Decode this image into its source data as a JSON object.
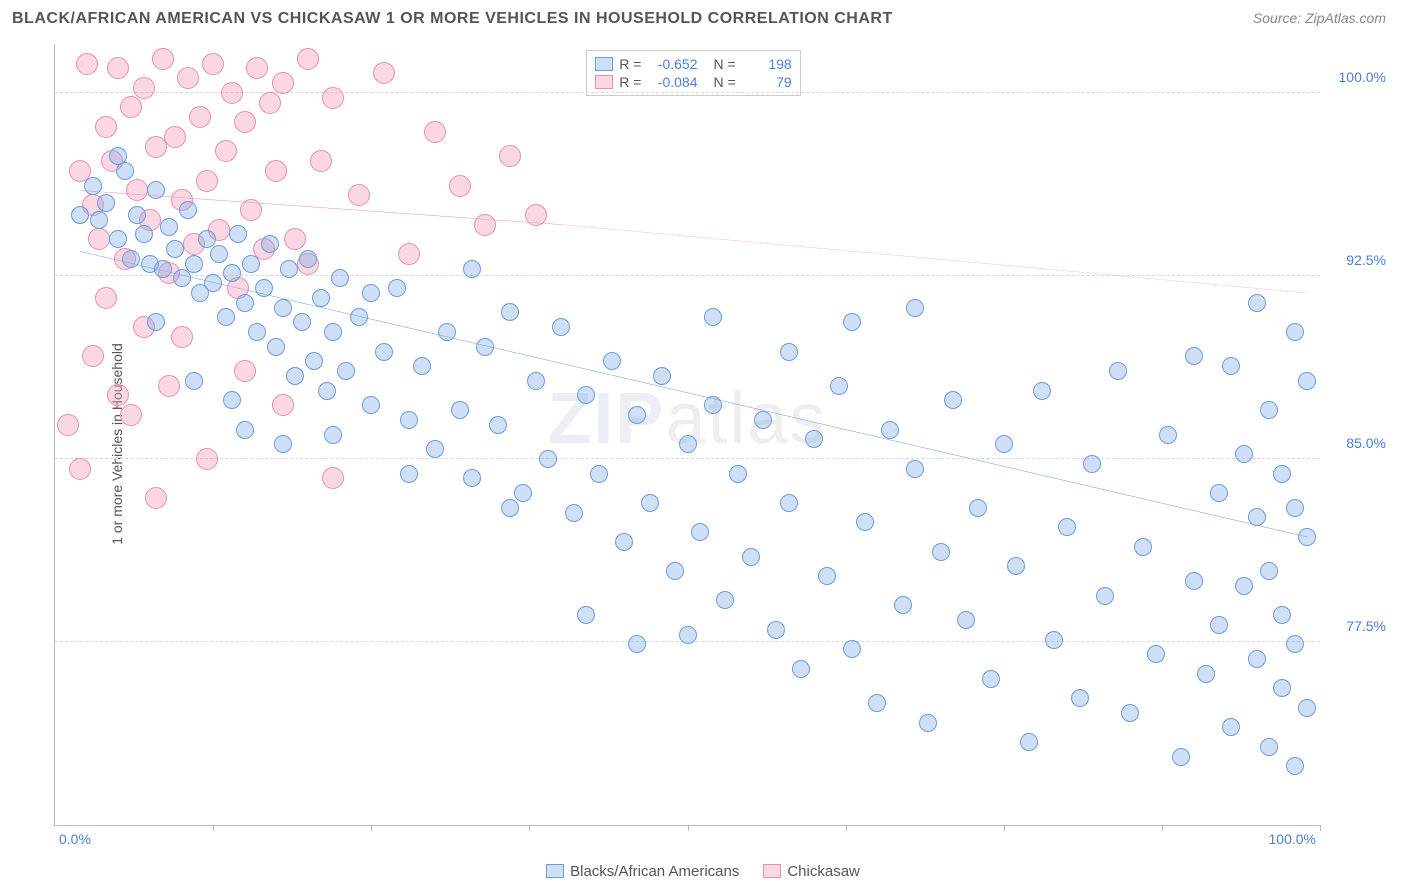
{
  "header": {
    "title": "BLACK/AFRICAN AMERICAN VS CHICKASAW 1 OR MORE VEHICLES IN HOUSEHOLD CORRELATION CHART",
    "source": "Source: ZipAtlas.com"
  },
  "chart": {
    "type": "scatter",
    "ylabel": "1 or more Vehicles in Household",
    "xmin": 0,
    "xmax": 100,
    "ymin": 70,
    "ymax": 102,
    "x_axis_labels": {
      "left": "0.0%",
      "right": "100.0%"
    },
    "y_ticks": [
      {
        "v": 100.0,
        "label": "100.0%"
      },
      {
        "v": 92.5,
        "label": "92.5%"
      },
      {
        "v": 85.0,
        "label": "85.0%"
      },
      {
        "v": 77.5,
        "label": "77.5%"
      }
    ],
    "x_tick_positions": [
      12.5,
      25,
      37.5,
      50,
      62.5,
      75,
      87.5,
      100
    ],
    "grid_color": "#d8d8d8",
    "background_color": "#ffffff",
    "watermark": {
      "bold": "ZIP",
      "thin": "atlas"
    },
    "series": {
      "a": {
        "label": "Blacks/African Americans",
        "fill": "rgba(126,171,232,0.38)",
        "stroke": "#6d9de0",
        "trend_color": "#2e6fd0",
        "trend": {
          "x1": 2,
          "y1": 93.5,
          "x2_solid": 99,
          "y2_solid": 81.8,
          "dashed": false
        },
        "marker_r": 9,
        "R": "-0.652",
        "N": "198",
        "points": [
          [
            2,
            95
          ],
          [
            3,
            96.2
          ],
          [
            3.5,
            94.8
          ],
          [
            4,
            95.5
          ],
          [
            5,
            94
          ],
          [
            5.5,
            96.8
          ],
          [
            6,
            93.2
          ],
          [
            6.5,
            95
          ],
          [
            7,
            94.2
          ],
          [
            7.5,
            93
          ],
          [
            8,
            96
          ],
          [
            8.5,
            92.8
          ],
          [
            9,
            94.5
          ],
          [
            9.5,
            93.6
          ],
          [
            10,
            92.4
          ],
          [
            10.5,
            95.2
          ],
          [
            11,
            93
          ],
          [
            11.5,
            91.8
          ],
          [
            12,
            94
          ],
          [
            12.5,
            92.2
          ],
          [
            13,
            93.4
          ],
          [
            13.5,
            90.8
          ],
          [
            14,
            92.6
          ],
          [
            14.5,
            94.2
          ],
          [
            15,
            91.4
          ],
          [
            15.5,
            93
          ],
          [
            16,
            90.2
          ],
          [
            16.5,
            92
          ],
          [
            17,
            93.8
          ],
          [
            17.5,
            89.6
          ],
          [
            18,
            91.2
          ],
          [
            18.5,
            92.8
          ],
          [
            19,
            88.4
          ],
          [
            19.5,
            90.6
          ],
          [
            20,
            93.2
          ],
          [
            20.5,
            89
          ],
          [
            21,
            91.6
          ],
          [
            21.5,
            87.8
          ],
          [
            22,
            90.2
          ],
          [
            22.5,
            92.4
          ],
          [
            23,
            88.6
          ],
          [
            24,
            90.8
          ],
          [
            25,
            87.2
          ],
          [
            26,
            89.4
          ],
          [
            27,
            92
          ],
          [
            28,
            86.6
          ],
          [
            29,
            88.8
          ],
          [
            30,
            85.4
          ],
          [
            31,
            90.2
          ],
          [
            32,
            87
          ],
          [
            33,
            84.2
          ],
          [
            34,
            89.6
          ],
          [
            35,
            86.4
          ],
          [
            36,
            91
          ],
          [
            37,
            83.6
          ],
          [
            38,
            88.2
          ],
          [
            39,
            85
          ],
          [
            40,
            90.4
          ],
          [
            41,
            82.8
          ],
          [
            42,
            87.6
          ],
          [
            43,
            84.4
          ],
          [
            44,
            89
          ],
          [
            45,
            81.6
          ],
          [
            46,
            86.8
          ],
          [
            47,
            83.2
          ],
          [
            48,
            88.4
          ],
          [
            49,
            80.4
          ],
          [
            50,
            85.6
          ],
          [
            50,
            77.8
          ],
          [
            51,
            82
          ],
          [
            52,
            87.2
          ],
          [
            53,
            79.2
          ],
          [
            54,
            84.4
          ],
          [
            55,
            81
          ],
          [
            56,
            86.6
          ],
          [
            57,
            78
          ],
          [
            58,
            83.2
          ],
          [
            59,
            76.4
          ],
          [
            60,
            85.8
          ],
          [
            61,
            80.2
          ],
          [
            62,
            88
          ],
          [
            63,
            77.2
          ],
          [
            64,
            82.4
          ],
          [
            65,
            75
          ],
          [
            66,
            86.2
          ],
          [
            67,
            79
          ],
          [
            68,
            84.6
          ],
          [
            69,
            74.2
          ],
          [
            70,
            81.2
          ],
          [
            71,
            87.4
          ],
          [
            72,
            78.4
          ],
          [
            73,
            83
          ],
          [
            74,
            76
          ],
          [
            75,
            85.6
          ],
          [
            76,
            80.6
          ],
          [
            77,
            73.4
          ],
          [
            78,
            87.8
          ],
          [
            79,
            77.6
          ],
          [
            80,
            82.2
          ],
          [
            81,
            75.2
          ],
          [
            82,
            84.8
          ],
          [
            83,
            79.4
          ],
          [
            84,
            88.6
          ],
          [
            85,
            74.6
          ],
          [
            86,
            81.4
          ],
          [
            87,
            77
          ],
          [
            88,
            86
          ],
          [
            89,
            72.8
          ],
          [
            90,
            80
          ],
          [
            90,
            89.2
          ],
          [
            91,
            76.2
          ],
          [
            92,
            83.6
          ],
          [
            92,
            78.2
          ],
          [
            93,
            88.8
          ],
          [
            93,
            74
          ],
          [
            94,
            85.2
          ],
          [
            94,
            79.8
          ],
          [
            95,
            91.4
          ],
          [
            95,
            76.8
          ],
          [
            95,
            82.6
          ],
          [
            96,
            73.2
          ],
          [
            96,
            87
          ],
          [
            96,
            80.4
          ],
          [
            97,
            75.6
          ],
          [
            97,
            84.4
          ],
          [
            97,
            78.6
          ],
          [
            98,
            90.2
          ],
          [
            98,
            72.4
          ],
          [
            98,
            83
          ],
          [
            98,
            77.4
          ],
          [
            99,
            88.2
          ],
          [
            99,
            74.8
          ],
          [
            99,
            81.8
          ],
          [
            15,
            86.2
          ],
          [
            18,
            85.6
          ],
          [
            22,
            86
          ],
          [
            25,
            91.8
          ],
          [
            28,
            84.4
          ],
          [
            33,
            92.8
          ],
          [
            36,
            83
          ],
          [
            5,
            97.4
          ],
          [
            8,
            90.6
          ],
          [
            11,
            88.2
          ],
          [
            14,
            87.4
          ],
          [
            42,
            78.6
          ],
          [
            46,
            77.4
          ],
          [
            52,
            90.8
          ],
          [
            58,
            89.4
          ],
          [
            63,
            90.6
          ],
          [
            68,
            91.2
          ]
        ]
      },
      "b": {
        "label": "Chickasaw",
        "fill": "rgba(244,160,188,0.42)",
        "stroke": "#e88fb0",
        "trend_color": "#e45a8a",
        "trend": {
          "x1": 2,
          "y1": 96,
          "x2_solid": 40,
          "y2_solid": 94.6,
          "x2_dash": 99,
          "y2_dash": 91.8,
          "dashed": true
        },
        "marker_r": 11,
        "R": "-0.084",
        "N": "79",
        "points": [
          [
            1,
            86.4
          ],
          [
            2,
            96.8
          ],
          [
            2.5,
            101.2
          ],
          [
            3,
            95.4
          ],
          [
            3.5,
            94
          ],
          [
            4,
            98.6
          ],
          [
            4.5,
            97.2
          ],
          [
            5,
            101
          ],
          [
            5.5,
            93.2
          ],
          [
            6,
            99.4
          ],
          [
            6.5,
            96
          ],
          [
            7,
            100.2
          ],
          [
            7.5,
            94.8
          ],
          [
            8,
            97.8
          ],
          [
            8.5,
            101.4
          ],
          [
            9,
            92.6
          ],
          [
            9.5,
            98.2
          ],
          [
            10,
            95.6
          ],
          [
            10.5,
            100.6
          ],
          [
            11,
            93.8
          ],
          [
            11.5,
            99
          ],
          [
            12,
            96.4
          ],
          [
            12.5,
            101.2
          ],
          [
            13,
            94.4
          ],
          [
            13.5,
            97.6
          ],
          [
            14,
            100
          ],
          [
            14.5,
            92
          ],
          [
            15,
            98.8
          ],
          [
            15.5,
            95.2
          ],
          [
            16,
            101
          ],
          [
            16.5,
            93.6
          ],
          [
            17,
            99.6
          ],
          [
            17.5,
            96.8
          ],
          [
            18,
            100.4
          ],
          [
            19,
            94
          ],
          [
            20,
            101.4
          ],
          [
            21,
            97.2
          ],
          [
            22,
            99.8
          ],
          [
            24,
            95.8
          ],
          [
            26,
            100.8
          ],
          [
            28,
            93.4
          ],
          [
            30,
            98.4
          ],
          [
            32,
            96.2
          ],
          [
            34,
            94.6
          ],
          [
            36,
            97.4
          ],
          [
            38,
            95
          ],
          [
            3,
            89.2
          ],
          [
            5,
            87.6
          ],
          [
            7,
            90.4
          ],
          [
            9,
            88
          ],
          [
            12,
            85
          ],
          [
            15,
            88.6
          ],
          [
            18,
            87.2
          ],
          [
            22,
            84.2
          ],
          [
            2,
            84.6
          ],
          [
            4,
            91.6
          ],
          [
            6,
            86.8
          ],
          [
            8,
            83.4
          ],
          [
            10,
            90
          ],
          [
            20,
            93
          ]
        ]
      }
    },
    "statbox": {
      "rows": [
        {
          "series": "a",
          "R_label": "R =",
          "N_label": "N ="
        },
        {
          "series": "b",
          "R_label": "R =",
          "N_label": "N ="
        }
      ]
    }
  }
}
